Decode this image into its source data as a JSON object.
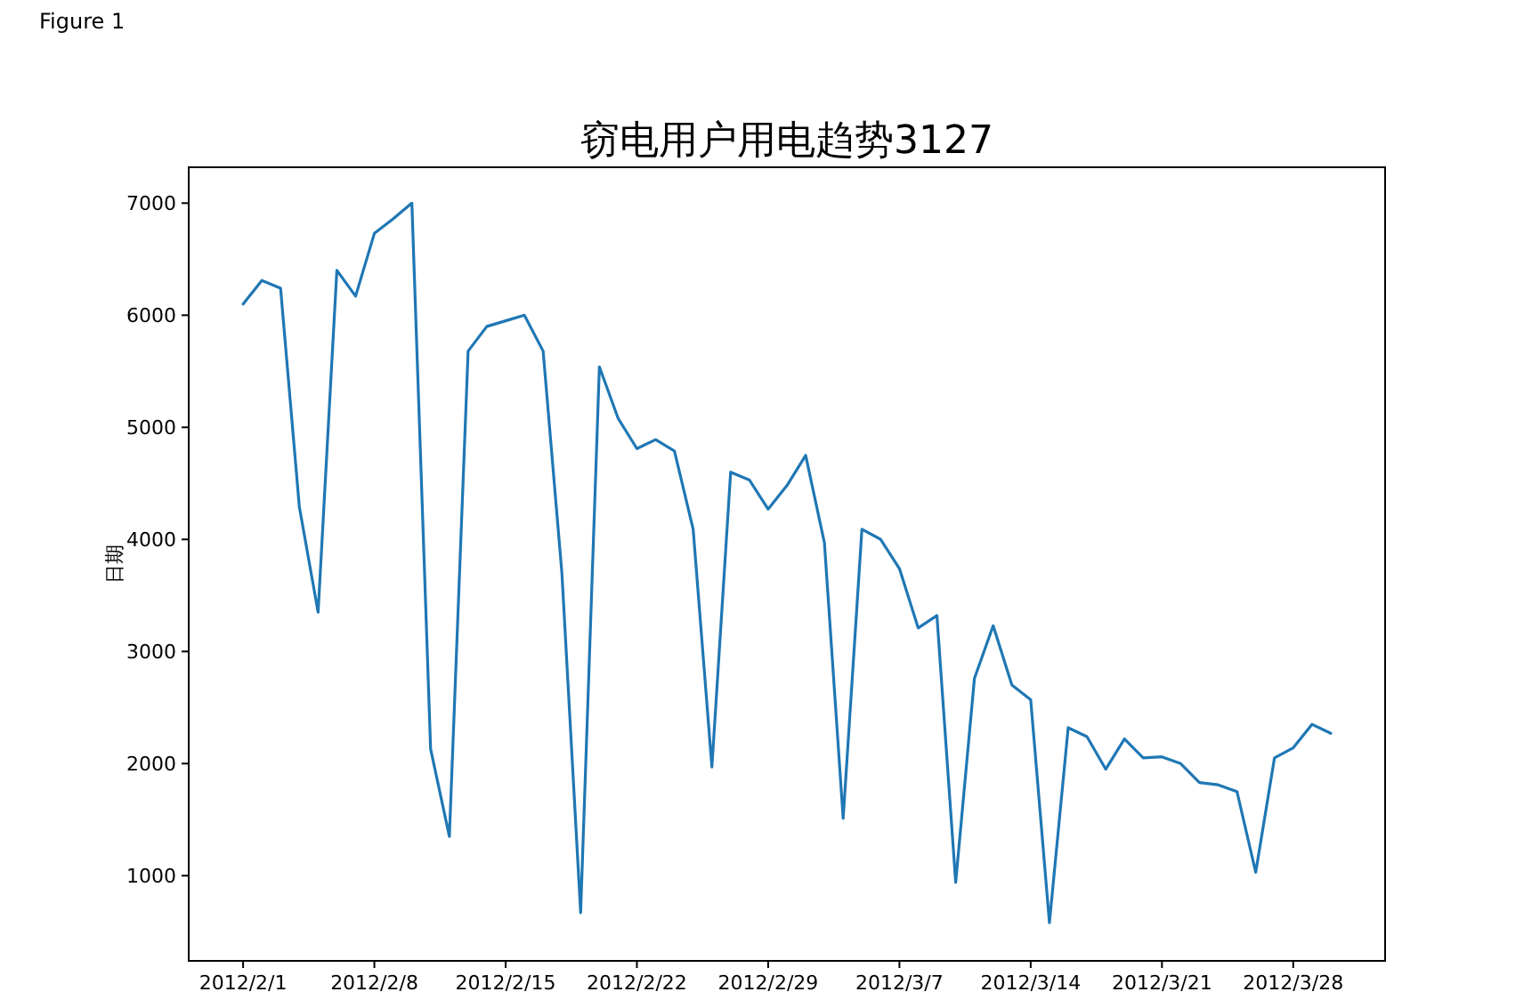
{
  "chart_data": {
    "type": "line",
    "title": "窃电用户用电趋势3127",
    "ylabel": "日期",
    "annotations": [
      "Figure 1"
    ],
    "x": [
      "2012-02-01",
      "2012-02-02",
      "2012-02-03",
      "2012-02-04",
      "2012-02-05",
      "2012-02-06",
      "2012-02-07",
      "2012-02-08",
      "2012-02-09",
      "2012-02-10",
      "2012-02-11",
      "2012-02-12",
      "2012-02-13",
      "2012-02-14",
      "2012-02-15",
      "2012-02-16",
      "2012-02-17",
      "2012-02-18",
      "2012-02-19",
      "2012-02-20",
      "2012-02-21",
      "2012-02-22",
      "2012-02-23",
      "2012-02-24",
      "2012-02-25",
      "2012-02-26",
      "2012-02-27",
      "2012-02-28",
      "2012-02-29",
      "2012-03-01",
      "2012-03-02",
      "2012-03-03",
      "2012-03-04",
      "2012-03-05",
      "2012-03-06",
      "2012-03-07",
      "2012-03-08",
      "2012-03-09",
      "2012-03-10",
      "2012-03-11",
      "2012-03-12",
      "2012-03-13",
      "2012-03-14",
      "2012-03-15",
      "2012-03-16",
      "2012-03-17",
      "2012-03-18",
      "2012-03-19",
      "2012-03-20",
      "2012-03-21",
      "2012-03-22",
      "2012-03-23",
      "2012-03-24",
      "2012-03-25",
      "2012-03-26",
      "2012-03-27",
      "2012-03-28",
      "2012-03-29",
      "2012-03-30"
    ],
    "series": [
      {
        "color": "#1f77b4",
        "values": [
          6100,
          6310,
          6240,
          4290,
          3350,
          6400,
          6170,
          6730,
          6860,
          7000,
          2130,
          1350,
          5680,
          5900,
          5950,
          6000,
          5680,
          3700,
          670,
          5540,
          5080,
          4810,
          4890,
          4790,
          4090,
          1970,
          4600,
          4530,
          4270,
          4480,
          4750,
          3970,
          1510,
          4090,
          4000,
          3740,
          3210,
          3320,
          940,
          2760,
          3230,
          2700,
          2570,
          580,
          2320,
          2240,
          1950,
          2220,
          2050,
          2060,
          2000,
          1830,
          1810,
          1750,
          1030,
          2050,
          2140,
          2350,
          2270
        ]
      }
    ],
    "xlim": [
      "2012-01-29T02:24",
      "2012-04-01T21:36"
    ],
    "xticks": [
      {
        "value": "2012-02-01",
        "label": "2012/2/1"
      },
      {
        "value": "2012-02-08",
        "label": "2012/2/8"
      },
      {
        "value": "2012-02-15",
        "label": "2012/2/15"
      },
      {
        "value": "2012-02-22",
        "label": "2012/2/22"
      },
      {
        "value": "2012-02-29",
        "label": "2012/2/29"
      },
      {
        "value": "2012-03-07",
        "label": "2012/3/7"
      },
      {
        "value": "2012-03-14",
        "label": "2012/3/14"
      },
      {
        "value": "2012-03-21",
        "label": "2012/3/21"
      },
      {
        "value": "2012-03-28",
        "label": "2012/3/28"
      }
    ],
    "ylim": [
      240,
      7320
    ],
    "yticks": [
      1000,
      2000,
      3000,
      4000,
      5000,
      6000,
      7000
    ],
    "grid": false
  }
}
